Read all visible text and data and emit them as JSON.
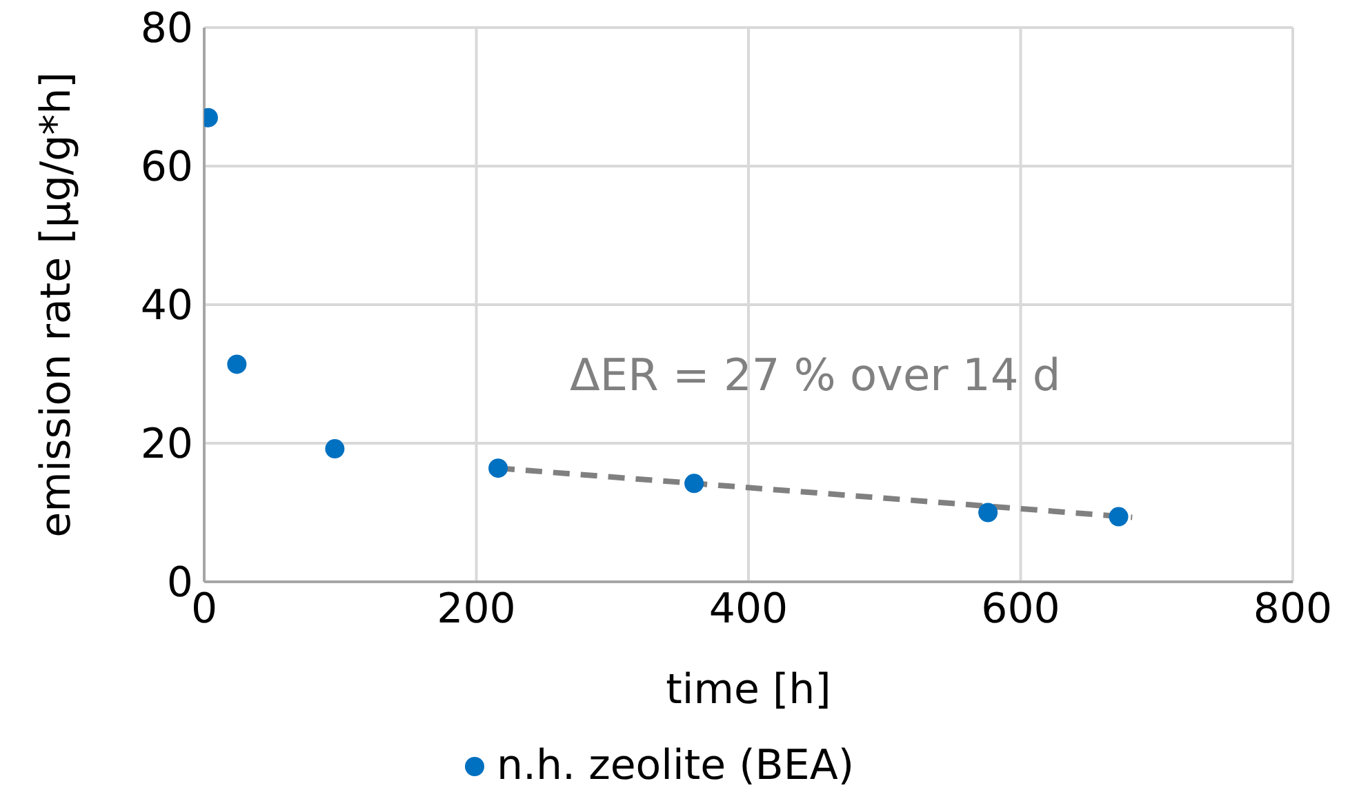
{
  "chart_data": {
    "type": "scatter",
    "xlabel": "time [h]",
    "ylabel": "emission rate [µg/g*h]",
    "x": [
      3,
      24,
      96,
      216,
      360,
      576,
      672
    ],
    "series": [
      {
        "name": "n.h. zeolite (BEA)",
        "color": "#0070c0",
        "values": [
          67,
          31.4,
          19.2,
          16.4,
          14.2,
          10.0,
          9.4
        ]
      },
      {
        "type": "line",
        "color": "#808080",
        "line_style": "dashed",
        "marker": "none",
        "x": [
          216,
          682
        ],
        "values": [
          16.4,
          9.3
        ]
      }
    ],
    "annotations": [
      "ΔER = 27 % over 14 d"
    ],
    "xlim": [
      0,
      800
    ],
    "xticks": [
      0,
      200,
      400,
      600,
      800
    ],
    "ylim": [
      0,
      80
    ],
    "yticks": [
      0,
      20,
      40,
      60,
      80
    ],
    "grid": true,
    "legend": "bottom",
    "marker": "circle"
  }
}
